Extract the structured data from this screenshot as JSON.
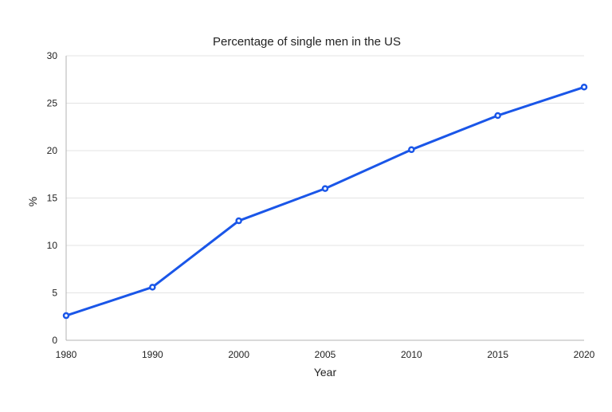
{
  "chart_data": {
    "type": "line",
    "title": "Percentage of single men in the US",
    "xlabel": "Year",
    "ylabel": "%",
    "categories": [
      "1980",
      "1990",
      "2000",
      "2005",
      "2010",
      "2015",
      "2020"
    ],
    "y_ticks": [
      "0",
      "5",
      "10",
      "15",
      "20",
      "25",
      "30"
    ],
    "ylim": [
      0,
      30
    ],
    "grid": true,
    "legend": "none",
    "series": [
      {
        "color": "#1a56e8",
        "values": [
          2.6,
          5.6,
          12.6,
          16.0,
          20.1,
          23.7,
          26.7
        ]
      }
    ]
  }
}
